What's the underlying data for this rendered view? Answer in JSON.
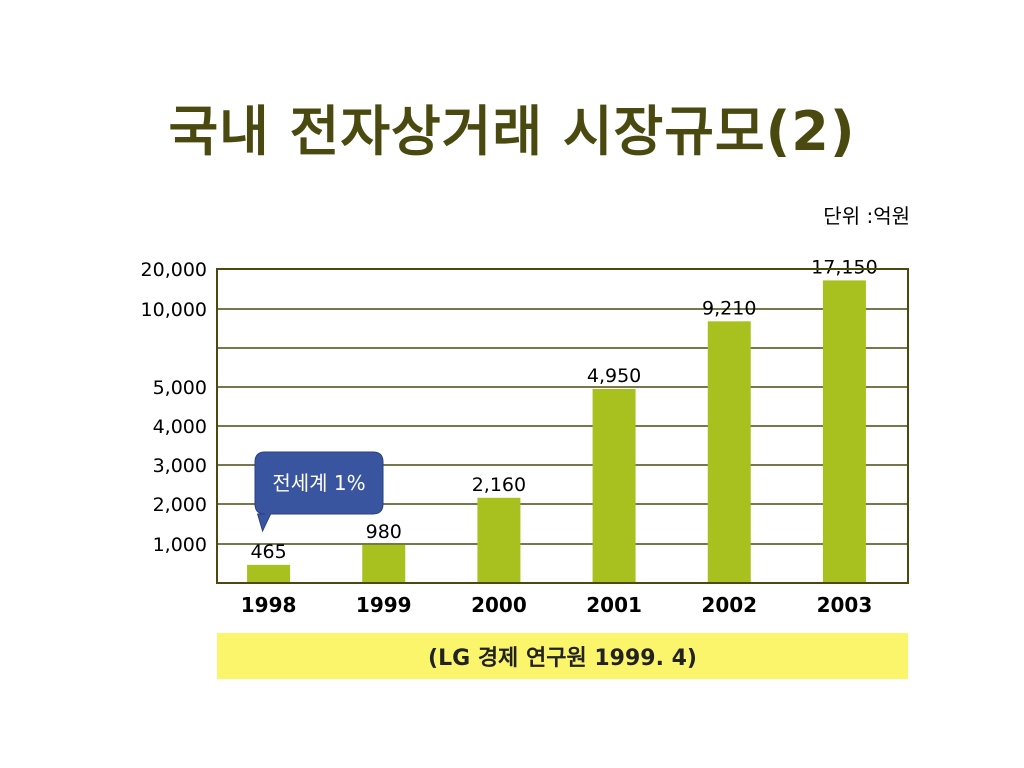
{
  "slide": {
    "title": "국내 전자상거래 시장규모(2)",
    "unit": "단위 :억원",
    "source": "(LG 경제 연구원 1999. 4)"
  },
  "chart_data": {
    "type": "bar",
    "categories": [
      "1998",
      "1999",
      "2000",
      "2001",
      "2002",
      "2003"
    ],
    "values": [
      465,
      980,
      2160,
      4950,
      9210,
      17150
    ],
    "data_labels": [
      "465",
      "980",
      "2,160",
      "4,950",
      "9,210",
      "17,150"
    ],
    "yticks": [
      {
        "value": 1000,
        "label": "1,000"
      },
      {
        "value": 2000,
        "label": "2,000"
      },
      {
        "value": 3000,
        "label": "3,000"
      },
      {
        "value": 4000,
        "label": "4,000"
      },
      {
        "value": 5000,
        "label": "5,000"
      },
      {
        "value": 10000,
        "label": "10,000"
      },
      {
        "value": 20000,
        "label": "20,000"
      }
    ],
    "ylim": [
      0,
      20000
    ],
    "y_scale": "broken",
    "grid": true,
    "title": "",
    "xlabel": "",
    "ylabel": "",
    "bar_color": "#a8c11f",
    "annotation": {
      "text": "전세계 1%",
      "target_category": "1998",
      "color": "#3a55a0"
    }
  }
}
